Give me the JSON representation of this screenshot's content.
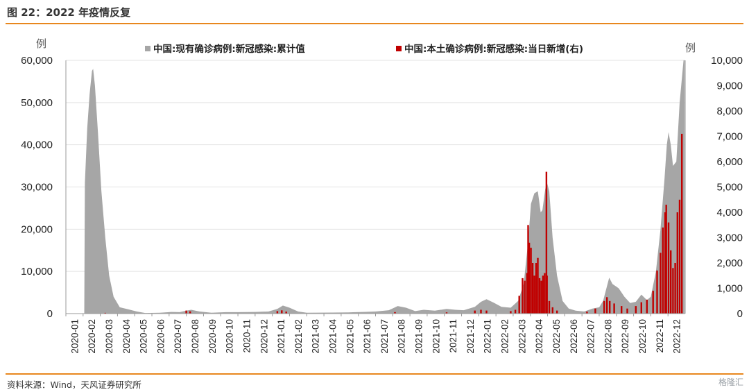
{
  "header": {
    "title": "图 22：2022 年疫情反复"
  },
  "footer": {
    "source": "资料来源：Wind，天风证券研究所",
    "watermark": "格隆汇"
  },
  "colors": {
    "accent_rule": "#e8871e",
    "series_gray": "#a6a6a6",
    "series_red": "#c00000"
  },
  "chart_data": {
    "type": "area",
    "left_unit": "例",
    "right_unit": "例",
    "legend_placement": "top-center",
    "grid": "horizontal",
    "y_left": {
      "lim": [
        0,
        60000
      ],
      "ticks": [
        "0",
        "10,000",
        "20,000",
        "30,000",
        "40,000",
        "50,000",
        "60,000"
      ]
    },
    "y_right": {
      "lim": [
        0,
        10000
      ],
      "ticks": [
        "0",
        "1,000",
        "2,000",
        "3,000",
        "4,000",
        "5,000",
        "6,000",
        "7,000",
        "8,000",
        "9,000",
        "10,000"
      ]
    },
    "x_categories": [
      "2020-01",
      "2020-02",
      "2020-03",
      "2020-04",
      "2020-05",
      "2020-06",
      "2020-07",
      "2020-08",
      "2020-09",
      "2020-10",
      "2020-11",
      "2020-12",
      "2021-01",
      "2021-02",
      "2021-03",
      "2021-04",
      "2021-05",
      "2021-06",
      "2021-07",
      "2021-08",
      "2021-09",
      "2021-10",
      "2021-11",
      "2021-12",
      "2022-01",
      "2022-02",
      "2022-03",
      "2022-04",
      "2022-05",
      "2022-06",
      "2022-07",
      "2022-08",
      "2022-09",
      "2022-10",
      "2022-11",
      "2022-12"
    ],
    "series": [
      {
        "name": "中国:现有确诊病例:新冠感染:累计值",
        "axis": "left",
        "style": "area",
        "points": [
          [
            "2020-01-20",
            0
          ],
          [
            "2020-02-03",
            0
          ],
          [
            "2020-02-04",
            31000
          ],
          [
            "2020-02-08",
            44000
          ],
          [
            "2020-02-12",
            52000
          ],
          [
            "2020-02-16",
            57500
          ],
          [
            "2020-02-18",
            58000
          ],
          [
            "2020-02-21",
            54000
          ],
          [
            "2020-02-26",
            43000
          ],
          [
            "2020-03-03",
            29000
          ],
          [
            "2020-03-10",
            18000
          ],
          [
            "2020-03-17",
            9000
          ],
          [
            "2020-03-25",
            4000
          ],
          [
            "2020-04-05",
            1500
          ],
          [
            "2020-04-20",
            1000
          ],
          [
            "2020-05-05",
            500
          ],
          [
            "2020-05-20",
            150
          ],
          [
            "2020-06-15",
            200
          ],
          [
            "2020-07-05",
            400
          ],
          [
            "2020-07-20",
            350
          ],
          [
            "2020-08-01",
            700
          ],
          [
            "2020-08-10",
            900
          ],
          [
            "2020-08-25",
            500
          ],
          [
            "2020-09-15",
            200
          ],
          [
            "2020-10-10",
            350
          ],
          [
            "2020-11-01",
            350
          ],
          [
            "2020-12-01",
            400
          ],
          [
            "2020-12-25",
            500
          ],
          [
            "2021-01-10",
            1100
          ],
          [
            "2021-01-20",
            1900
          ],
          [
            "2021-02-01",
            1400
          ],
          [
            "2021-02-15",
            500
          ],
          [
            "2021-03-01",
            200
          ],
          [
            "2021-04-15",
            250
          ],
          [
            "2021-05-15",
            300
          ],
          [
            "2021-06-10",
            400
          ],
          [
            "2021-07-01",
            500
          ],
          [
            "2021-07-25",
            800
          ],
          [
            "2021-08-10",
            1800
          ],
          [
            "2021-08-25",
            1400
          ],
          [
            "2021-09-10",
            600
          ],
          [
            "2021-09-25",
            900
          ],
          [
            "2021-10-15",
            700
          ],
          [
            "2021-11-05",
            1100
          ],
          [
            "2021-11-20",
            900
          ],
          [
            "2021-12-05",
            800
          ],
          [
            "2021-12-25",
            1600
          ],
          [
            "2022-01-05",
            2800
          ],
          [
            "2022-01-15",
            3400
          ],
          [
            "2022-01-28",
            2600
          ],
          [
            "2022-02-10",
            1600
          ],
          [
            "2022-02-25",
            1400
          ],
          [
            "2022-03-10",
            3000
          ],
          [
            "2022-03-20",
            7000
          ],
          [
            "2022-03-28",
            17000
          ],
          [
            "2022-04-02",
            26000
          ],
          [
            "2022-04-08",
            28500
          ],
          [
            "2022-04-14",
            29000
          ],
          [
            "2022-04-19",
            24000
          ],
          [
            "2022-04-22",
            24500
          ],
          [
            "2022-04-27",
            29500
          ],
          [
            "2022-04-30",
            31000
          ],
          [
            "2022-05-04",
            29000
          ],
          [
            "2022-05-10",
            18000
          ],
          [
            "2022-05-18",
            9000
          ],
          [
            "2022-05-28",
            3000
          ],
          [
            "2022-06-08",
            1200
          ],
          [
            "2022-06-20",
            700
          ],
          [
            "2022-07-05",
            500
          ],
          [
            "2022-07-20",
            1200
          ],
          [
            "2022-08-01",
            1500
          ],
          [
            "2022-08-08",
            3000
          ],
          [
            "2022-08-15",
            6500
          ],
          [
            "2022-08-19",
            8500
          ],
          [
            "2022-08-25",
            7000
          ],
          [
            "2022-09-05",
            6000
          ],
          [
            "2022-09-15",
            4000
          ],
          [
            "2022-09-25",
            2500
          ],
          [
            "2022-10-05",
            2800
          ],
          [
            "2022-10-15",
            4500
          ],
          [
            "2022-10-25",
            3200
          ],
          [
            "2022-11-01",
            4000
          ],
          [
            "2022-11-10",
            10000
          ],
          [
            "2022-11-18",
            20000
          ],
          [
            "2022-11-25",
            32000
          ],
          [
            "2022-11-29",
            40000
          ],
          [
            "2022-12-02",
            43000
          ],
          [
            "2022-12-06",
            40000
          ],
          [
            "2022-12-10",
            35000
          ],
          [
            "2022-12-16",
            36000
          ],
          [
            "2022-12-22",
            50000
          ],
          [
            "2022-12-29",
            60000
          ],
          [
            "2022-12-31",
            60000
          ]
        ]
      },
      {
        "name": "中国:本土确诊病例:新冠感染:当日新增(右)",
        "axis": "right",
        "style": "bars",
        "points": [
          [
            "2020-03-10",
            30
          ],
          [
            "2020-08-01",
            120
          ],
          [
            "2020-08-08",
            90
          ],
          [
            "2021-01-10",
            100
          ],
          [
            "2021-01-18",
            130
          ],
          [
            "2021-01-26",
            80
          ],
          [
            "2021-08-05",
            60
          ],
          [
            "2021-11-05",
            50
          ],
          [
            "2021-12-25",
            120
          ],
          [
            "2022-01-05",
            150
          ],
          [
            "2022-01-15",
            120
          ],
          [
            "2022-02-25",
            100
          ],
          [
            "2022-03-05",
            150
          ],
          [
            "2022-03-12",
            700
          ],
          [
            "2022-03-18",
            1400
          ],
          [
            "2022-03-22",
            1300
          ],
          [
            "2022-03-26",
            1600
          ],
          [
            "2022-03-28",
            3500
          ],
          [
            "2022-03-30",
            2800
          ],
          [
            "2022-04-02",
            2600
          ],
          [
            "2022-04-05",
            2000
          ],
          [
            "2022-04-08",
            1500
          ],
          [
            "2022-04-11",
            2000
          ],
          [
            "2022-04-14",
            2200
          ],
          [
            "2022-04-17",
            1400
          ],
          [
            "2022-04-20",
            1300
          ],
          [
            "2022-04-23",
            1500
          ],
          [
            "2022-04-26",
            1600
          ],
          [
            "2022-04-29",
            5600
          ],
          [
            "2022-04-30",
            1500
          ],
          [
            "2022-05-04",
            500
          ],
          [
            "2022-05-10",
            250
          ],
          [
            "2022-05-18",
            120
          ],
          [
            "2022-07-10",
            80
          ],
          [
            "2022-07-25",
            200
          ],
          [
            "2022-08-10",
            500
          ],
          [
            "2022-08-15",
            650
          ],
          [
            "2022-08-20",
            500
          ],
          [
            "2022-08-28",
            400
          ],
          [
            "2022-09-10",
            300
          ],
          [
            "2022-09-20",
            200
          ],
          [
            "2022-10-05",
            300
          ],
          [
            "2022-10-15",
            450
          ],
          [
            "2022-10-25",
            550
          ],
          [
            "2022-11-05",
            900
          ],
          [
            "2022-11-12",
            1700
          ],
          [
            "2022-11-18",
            2400
          ],
          [
            "2022-11-22",
            3400
          ],
          [
            "2022-11-26",
            4000
          ],
          [
            "2022-11-28",
            4300
          ],
          [
            "2022-12-02",
            3600
          ],
          [
            "2022-12-06",
            2500
          ],
          [
            "2022-12-10",
            1800
          ],
          [
            "2022-12-14",
            2000
          ],
          [
            "2022-12-18",
            4000
          ],
          [
            "2022-12-22",
            4500
          ],
          [
            "2022-12-26",
            7100
          ]
        ]
      }
    ]
  }
}
